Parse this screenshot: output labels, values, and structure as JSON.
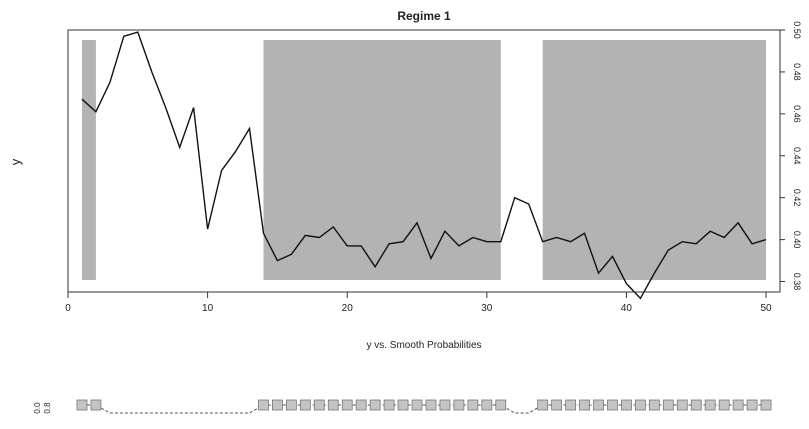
{
  "chart_data": [
    {
      "type": "line",
      "title": "Regime 1",
      "xlabel": "",
      "ylabel": "y",
      "xlim": [
        0,
        51
      ],
      "ylim": [
        0.375,
        0.5
      ],
      "x_ticks": [
        0,
        10,
        20,
        30,
        40,
        50
      ],
      "y_ticks": [
        0.38,
        0.4,
        0.42,
        0.44,
        0.46,
        0.48,
        0.5
      ],
      "y_tick_labels": [
        "0.38",
        "0.40",
        "0.42",
        "0.44",
        "0.46",
        "0.48",
        "0.50"
      ],
      "y_axis_side": "right",
      "shaded_regions": [
        [
          1,
          2
        ],
        [
          14,
          31
        ],
        [
          34,
          50
        ]
      ],
      "shade_color": "#b3b3b3",
      "line_color": "#111111",
      "x": [
        1,
        2,
        3,
        4,
        5,
        6,
        7,
        8,
        9,
        10,
        11,
        12,
        13,
        14,
        15,
        16,
        17,
        18,
        19,
        20,
        21,
        22,
        23,
        24,
        25,
        26,
        27,
        28,
        29,
        30,
        31,
        32,
        33,
        34,
        35,
        36,
        37,
        38,
        39,
        40,
        41,
        42,
        43,
        44,
        45,
        46,
        47,
        48,
        49,
        50
      ],
      "y": [
        0.467,
        0.461,
        0.475,
        0.497,
        0.499,
        0.48,
        0.463,
        0.444,
        0.463,
        0.405,
        0.433,
        0.442,
        0.453,
        0.403,
        0.39,
        0.393,
        0.402,
        0.401,
        0.406,
        0.397,
        0.397,
        0.387,
        0.398,
        0.399,
        0.408,
        0.391,
        0.404,
        0.397,
        0.401,
        0.399,
        0.399,
        0.42,
        0.417,
        0.399,
        0.401,
        0.399,
        0.403,
        0.384,
        0.392,
        0.379,
        0.372,
        0.384,
        0.395,
        0.399,
        0.398,
        0.404,
        0.401,
        0.408,
        0.398,
        0.4
      ]
    },
    {
      "type": "line",
      "title": "y vs. Smooth Probabilities",
      "xlabel": "",
      "ylabel": "",
      "ylim": [
        0,
        1
      ],
      "y_tick_labels": [
        "0.0",
        "0.8"
      ],
      "marker": "square",
      "marker_color": "#c4c4c4",
      "line_color": "#555555",
      "x": [
        1,
        2,
        3,
        4,
        5,
        6,
        7,
        8,
        9,
        10,
        11,
        12,
        13,
        14,
        15,
        16,
        17,
        18,
        19,
        20,
        21,
        22,
        23,
        24,
        25,
        26,
        27,
        28,
        29,
        30,
        31,
        32,
        33,
        34,
        35,
        36,
        37,
        38,
        39,
        40,
        41,
        42,
        43,
        44,
        45,
        46,
        47,
        48,
        49,
        50
      ],
      "values": [
        1,
        1,
        0,
        0,
        0,
        0,
        0,
        0,
        0,
        0,
        0,
        0,
        0,
        1,
        1,
        1,
        1,
        1,
        1,
        1,
        1,
        1,
        1,
        1,
        1,
        1,
        1,
        1,
        1,
        1,
        1,
        0,
        0,
        1,
        1,
        1,
        1,
        1,
        1,
        1,
        1,
        1,
        1,
        1,
        1,
        1,
        1,
        1,
        1,
        1
      ]
    }
  ]
}
